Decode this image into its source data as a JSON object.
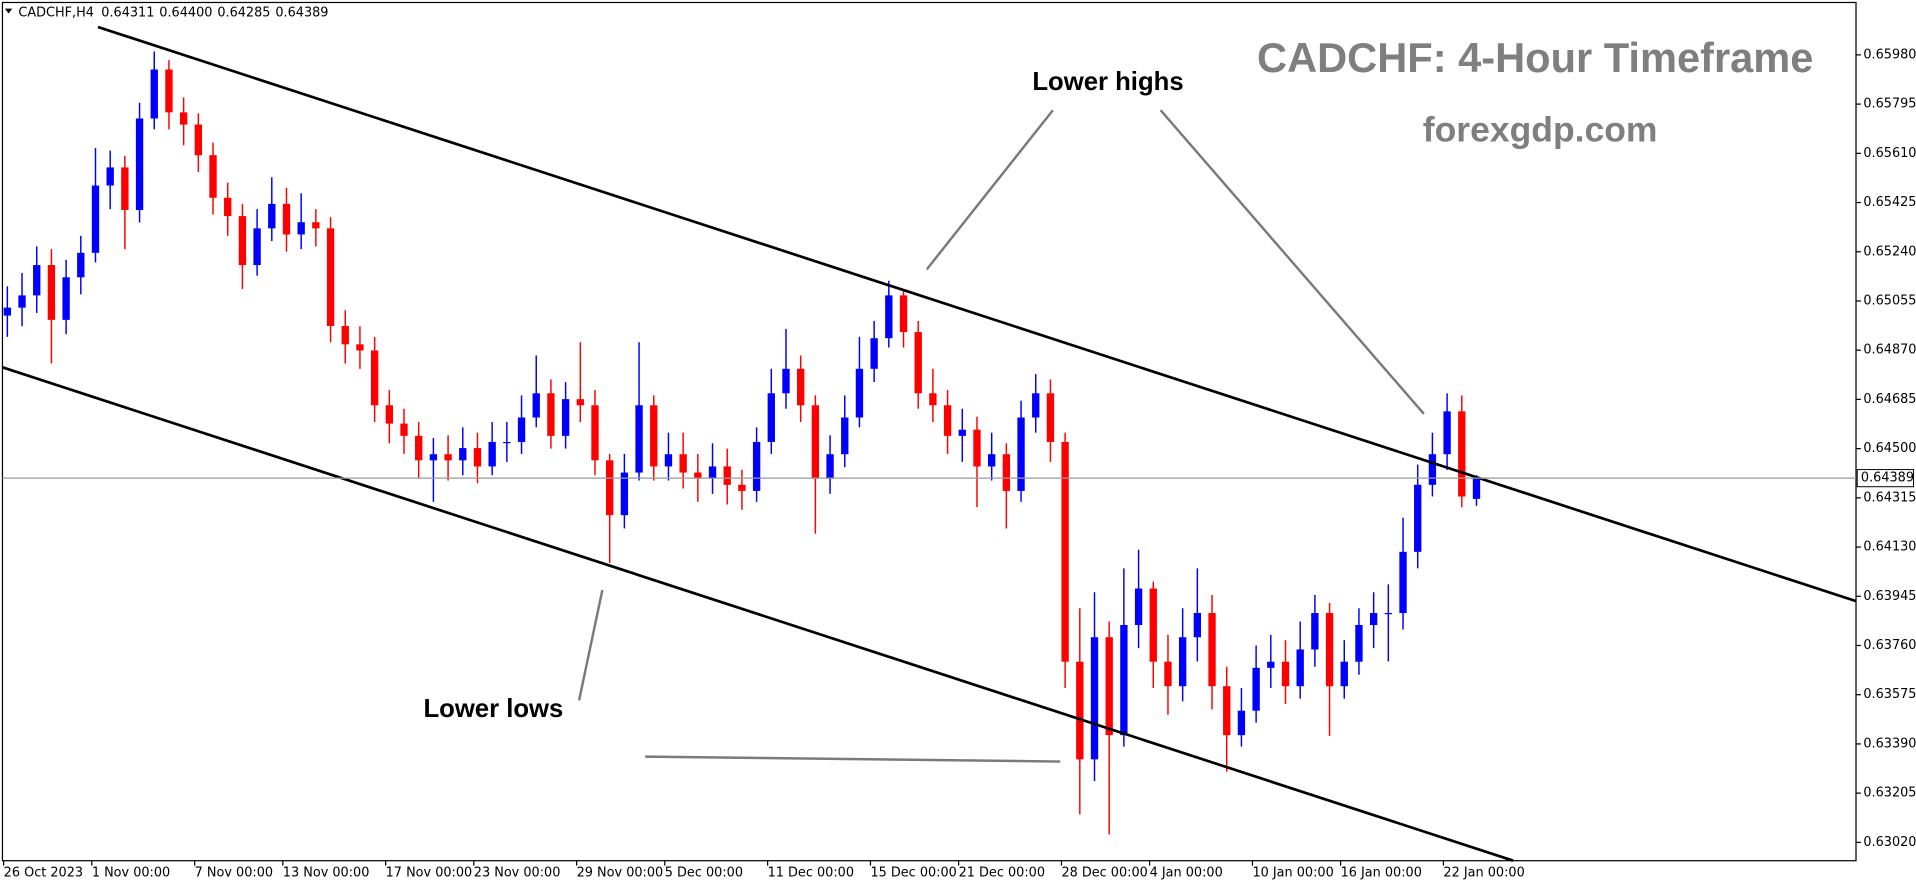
{
  "chart_data": {
    "type": "candlestick",
    "title": "CADCHF: 4-Hour Timeframe",
    "subtitle": "forexgdp.com",
    "symbol": "CADCHF,H4",
    "header_ohlc": [
      "0.64311",
      "0.64400",
      "0.64285",
      "0.64389"
    ],
    "annotations": [
      "Lower highs",
      "Lower lows"
    ],
    "up_color": "#0000ff",
    "down_color": "#ff0000",
    "last_price": 0.64389,
    "ylim": [
      0.62951,
      0.66177
    ],
    "yticks": [
      {
        "value": 0.6598,
        "label": "0.65980"
      },
      {
        "value": 0.65795,
        "label": "0.65795"
      },
      {
        "value": 0.6561,
        "label": "0.65610"
      },
      {
        "value": 0.65425,
        "label": "0.65425"
      },
      {
        "value": 0.6524,
        "label": "0.65240"
      },
      {
        "value": 0.65055,
        "label": "0.65055"
      },
      {
        "value": 0.6487,
        "label": "0.64870"
      },
      {
        "value": 0.64685,
        "label": "0.64685"
      },
      {
        "value": 0.645,
        "label": "0.64500"
      },
      {
        "value": 0.64315,
        "label": "0.64315"
      },
      {
        "value": 0.6413,
        "label": "0.64130"
      },
      {
        "value": 0.63945,
        "label": "0.63945"
      },
      {
        "value": 0.6376,
        "label": "0.63760"
      },
      {
        "value": 0.63575,
        "label": "0.63575"
      },
      {
        "value": 0.6339,
        "label": "0.63390"
      },
      {
        "value": 0.63205,
        "label": "0.63205"
      },
      {
        "value": 0.6302,
        "label": "0.63020"
      }
    ],
    "grid": false,
    "categories": [
      "26 Oct 2023",
      null,
      null,
      null,
      null,
      null,
      "1 Nov 00:00",
      null,
      null,
      null,
      null,
      null,
      null,
      "7 Nov 00:00",
      null,
      null,
      null,
      null,
      null,
      "13 Nov 00:00",
      null,
      null,
      null,
      null,
      null,
      null,
      "17 Nov 00:00",
      null,
      null,
      null,
      null,
      null,
      "23 Nov 00:00",
      null,
      null,
      null,
      null,
      null,
      null,
      "29 Nov 00:00",
      null,
      null,
      null,
      null,
      null,
      "5 Dec 00:00",
      null,
      null,
      null,
      null,
      null,
      null,
      "11 Dec 00:00",
      null,
      null,
      null,
      null,
      null,
      null,
      "15 Dec 00:00",
      null,
      null,
      null,
      null,
      null,
      "21 Dec 00:00",
      null,
      null,
      null,
      null,
      null,
      null,
      "28 Dec 00:00",
      null,
      null,
      null,
      null,
      null,
      "4 Jan 00:00",
      null,
      null,
      null,
      null,
      null,
      null,
      "10 Jan 00:00",
      null,
      null,
      null,
      null,
      null,
      "16 Jan 00:00",
      null,
      null,
      null,
      null,
      null,
      null,
      "22 Jan 00:00",
      null,
      null
    ],
    "open": [
      0.65,
      0.6503,
      0.65076,
      0.6519,
      0.64984,
      0.65144,
      0.65236,
      0.65489,
      0.65557,
      0.65397,
      0.65741,
      0.65925,
      0.65764,
      0.65718,
      0.65603,
      0.65443,
      0.65374,
      0.6519,
      0.65328,
      0.6542,
      0.65305,
      0.65351,
      0.65328,
      0.64961,
      0.64892,
      0.64869,
      0.64663,
      0.64594,
      0.64548,
      0.64456,
      0.64479,
      0.64456,
      0.64502,
      0.64433,
      0.64525,
      0.64525,
      0.64617,
      0.64708,
      0.64548,
      0.64686,
      0.64663,
      0.64456,
      0.6425,
      0.6441,
      0.64663,
      0.64433,
      0.64479,
      0.6441,
      0.64387,
      0.64433,
      0.64364,
      0.64341,
      0.64525,
      0.64708,
      0.648,
      0.64663,
      0.64387,
      0.64479,
      0.64617,
      0.648,
      0.64915,
      0.65076,
      0.64938,
      0.64708,
      0.64663,
      0.64548,
      0.64571,
      0.64433,
      0.64479,
      0.64341,
      0.64617,
      0.64708,
      0.64525,
      0.63699,
      0.63332,
      0.63791,
      0.63423,
      0.63837,
      0.63974,
      0.63699,
      0.63607,
      0.63791,
      0.63882,
      0.63607,
      0.63423,
      0.63515,
      0.63676,
      0.63699,
      0.63607,
      0.63745,
      0.63882,
      0.63607,
      0.63699,
      0.63837,
      0.63882,
      0.63882,
      0.64112,
      0.64364,
      0.64479,
      0.6464,
      0.64311
    ],
    "high": [
      0.6511,
      0.6516,
      0.6526,
      0.6525,
      0.6521,
      0.653,
      0.6563,
      0.6562,
      0.656,
      0.658,
      0.65993,
      0.6596,
      0.6582,
      0.6576,
      0.6565,
      0.655,
      0.6542,
      0.654,
      0.6552,
      0.6548,
      0.6546,
      0.654,
      0.6537,
      0.6502,
      0.6496,
      0.6492,
      0.6472,
      0.6465,
      0.646,
      0.6454,
      0.6455,
      0.6458,
      0.6456,
      0.646,
      0.646,
      0.647,
      0.6485,
      0.6476,
      0.6475,
      0.649,
      0.6472,
      0.6448,
      0.6448,
      0.649,
      0.647,
      0.6456,
      0.6456,
      0.6448,
      0.6452,
      0.645,
      0.6442,
      0.6458,
      0.648,
      0.6495,
      0.6485,
      0.647,
      0.6455,
      0.647,
      0.6492,
      0.6498,
      0.65131,
      0.651,
      0.6498,
      0.648,
      0.6472,
      0.6465,
      0.6462,
      0.6456,
      0.6452,
      0.6468,
      0.6478,
      0.6476,
      0.6456,
      0.639,
      0.6396,
      0.6385,
      0.6405,
      0.6412,
      0.64,
      0.638,
      0.639,
      0.6405,
      0.6395,
      0.6368,
      0.636,
      0.6376,
      0.638,
      0.6378,
      0.6385,
      0.6395,
      0.6392,
      0.6378,
      0.639,
      0.6396,
      0.6399,
      0.6424,
      0.6444,
      0.6456,
      0.64708,
      0.647,
      0.644
    ],
    "low": [
      0.6492,
      0.6496,
      0.6501,
      0.6482,
      0.6493,
      0.6508,
      0.652,
      0.654,
      0.6525,
      0.6535,
      0.657,
      0.657,
      0.6564,
      0.6554,
      0.6538,
      0.653,
      0.651,
      0.6515,
      0.6528,
      0.6524,
      0.6525,
      0.6526,
      0.649,
      0.6482,
      0.648,
      0.646,
      0.6452,
      0.6448,
      0.6439,
      0.643,
      0.6438,
      0.644,
      0.6437,
      0.644,
      0.6445,
      0.6448,
      0.6458,
      0.645,
      0.645,
      0.646,
      0.644,
      0.6407,
      0.642,
      0.6438,
      0.6438,
      0.6438,
      0.6435,
      0.643,
      0.6433,
      0.6429,
      0.6427,
      0.643,
      0.6448,
      0.6465,
      0.646,
      0.6418,
      0.6433,
      0.6443,
      0.6458,
      0.6475,
      0.6488,
      0.6488,
      0.6465,
      0.646,
      0.6448,
      0.6445,
      0.6428,
      0.6438,
      0.642,
      0.643,
      0.6456,
      0.6445,
      0.636,
      0.63125,
      0.6325,
      0.6305,
      0.6338,
      0.6375,
      0.636,
      0.635,
      0.6355,
      0.637,
      0.6352,
      0.63286,
      0.6338,
      0.6347,
      0.636,
      0.6354,
      0.6356,
      0.6368,
      0.6342,
      0.6356,
      0.6365,
      0.6375,
      0.637,
      0.6382,
      0.6405,
      0.6432,
      0.6442,
      0.6428,
      0.64285
    ],
    "close": [
      0.6503,
      0.65076,
      0.6519,
      0.64984,
      0.65144,
      0.65236,
      0.65489,
      0.65557,
      0.65397,
      0.65741,
      0.65925,
      0.65764,
      0.65718,
      0.65603,
      0.65443,
      0.65374,
      0.6519,
      0.65328,
      0.6542,
      0.65305,
      0.65351,
      0.65328,
      0.64961,
      0.64892,
      0.64869,
      0.64663,
      0.64594,
      0.64548,
      0.64456,
      0.64479,
      0.64456,
      0.64502,
      0.64433,
      0.64525,
      0.64525,
      0.64617,
      0.64708,
      0.64548,
      0.64686,
      0.64663,
      0.64456,
      0.6425,
      0.6441,
      0.64663,
      0.64433,
      0.64479,
      0.6441,
      0.64387,
      0.64433,
      0.64364,
      0.64341,
      0.64525,
      0.64708,
      0.648,
      0.64663,
      0.64387,
      0.64479,
      0.64617,
      0.648,
      0.64915,
      0.65076,
      0.64938,
      0.64708,
      0.64663,
      0.64548,
      0.64571,
      0.64433,
      0.64479,
      0.64341,
      0.64617,
      0.64708,
      0.64525,
      0.63699,
      0.63332,
      0.63791,
      0.63423,
      0.63837,
      0.63974,
      0.63699,
      0.63607,
      0.63791,
      0.63882,
      0.63607,
      0.63423,
      0.63515,
      0.63676,
      0.63699,
      0.63607,
      0.63745,
      0.63882,
      0.63607,
      0.63699,
      0.63837,
      0.63882,
      0.63882,
      0.64112,
      0.64364,
      0.64479,
      0.6464,
      0.6432,
      0.64389
    ]
  }
}
